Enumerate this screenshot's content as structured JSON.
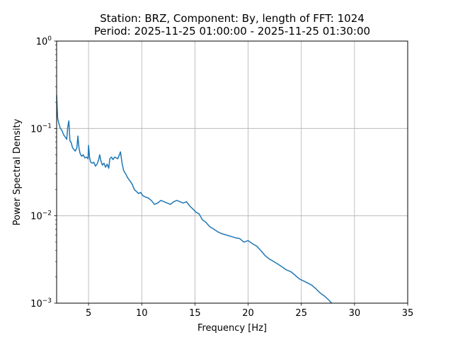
{
  "chart_data": {
    "type": "line",
    "title": "Station: BRZ, Component: By, length of FFT: 1024",
    "subtitle": "Period: 2025-11-25 01:00:00 - 2025-11-25 01:30:00",
    "xlabel": "Frequency [Hz]",
    "ylabel": "Power Spectral Density",
    "xlim": [
      2,
      35
    ],
    "ylim": [
      0.001,
      1
    ],
    "yscale": "log",
    "grid": true,
    "x_ticks": [
      5,
      10,
      15,
      20,
      25,
      30,
      35
    ],
    "x_tick_labels": [
      "5",
      "10",
      "15",
      "20",
      "25",
      "30",
      "35"
    ],
    "y_ticks": [
      0.001,
      0.01,
      0.1,
      1
    ],
    "y_tick_labels": [
      {
        "base": "10",
        "exp": "−3"
      },
      {
        "base": "10",
        "exp": "−2"
      },
      {
        "base": "10",
        "exp": "−1"
      },
      {
        "base": "10",
        "exp": "0"
      }
    ],
    "series": [
      {
        "color": "#1f77b4",
        "x": [
          2.0,
          2.1,
          2.2,
          2.35,
          2.5,
          2.65,
          2.8,
          2.95,
          3.05,
          3.15,
          3.25,
          3.35,
          3.5,
          3.6,
          3.75,
          3.9,
          4.0,
          4.1,
          4.2,
          4.35,
          4.5,
          4.65,
          4.8,
          4.95,
          5.0,
          5.1,
          5.2,
          5.35,
          5.5,
          5.65,
          5.8,
          5.95,
          6.05,
          6.15,
          6.3,
          6.45,
          6.6,
          6.75,
          6.9,
          7.0,
          7.15,
          7.3,
          7.45,
          7.6,
          7.75,
          7.9,
          8.0,
          8.15,
          8.3,
          8.5,
          8.7,
          8.9,
          9.1,
          9.3,
          9.5,
          9.7,
          9.9,
          10.1,
          10.3,
          10.6,
          10.9,
          11.2,
          11.5,
          11.8,
          12.1,
          12.4,
          12.7,
          13.0,
          13.3,
          13.6,
          13.9,
          14.2,
          14.5,
          14.8,
          15.1,
          15.4,
          15.7,
          16.0,
          16.4,
          16.8,
          17.2,
          17.6,
          18.0,
          18.4,
          18.8,
          19.2,
          19.6,
          20.0,
          20.4,
          20.8,
          21.2,
          21.6,
          22.0,
          22.4,
          22.8,
          23.2,
          23.6,
          24.0,
          24.4,
          24.8,
          25.2,
          25.6,
          26.0,
          26.4,
          26.8,
          27.2,
          27.6,
          27.85
        ],
        "values": [
          0.24,
          0.13,
          0.115,
          0.1,
          0.095,
          0.085,
          0.08,
          0.075,
          0.105,
          0.122,
          0.072,
          0.07,
          0.06,
          0.058,
          0.055,
          0.06,
          0.082,
          0.06,
          0.052,
          0.048,
          0.05,
          0.046,
          0.047,
          0.045,
          0.064,
          0.046,
          0.041,
          0.04,
          0.041,
          0.037,
          0.039,
          0.044,
          0.05,
          0.043,
          0.038,
          0.04,
          0.036,
          0.039,
          0.035,
          0.045,
          0.047,
          0.044,
          0.047,
          0.046,
          0.045,
          0.05,
          0.054,
          0.04,
          0.033,
          0.03,
          0.027,
          0.025,
          0.023,
          0.02,
          0.019,
          0.018,
          0.0185,
          0.017,
          0.0165,
          0.016,
          0.015,
          0.0135,
          0.014,
          0.015,
          0.0145,
          0.014,
          0.0135,
          0.0145,
          0.015,
          0.0145,
          0.014,
          0.0145,
          0.013,
          0.012,
          0.011,
          0.0105,
          0.009,
          0.0085,
          0.0075,
          0.007,
          0.0065,
          0.0062,
          0.006,
          0.0058,
          0.0056,
          0.0055,
          0.005,
          0.0052,
          0.0048,
          0.0045,
          0.004,
          0.0035,
          0.0032,
          0.003,
          0.0028,
          0.0026,
          0.0024,
          0.0023,
          0.0021,
          0.0019,
          0.0018,
          0.0017,
          0.0016,
          0.00145,
          0.0013,
          0.0012,
          0.00108,
          0.001
        ]
      }
    ]
  }
}
